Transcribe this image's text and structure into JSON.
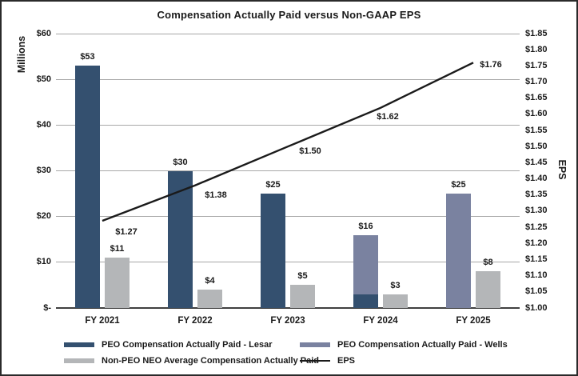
{
  "chart_data": {
    "type": "bar+line",
    "title": "Compensation Actually Paid versus Non-GAAP EPS",
    "categories": [
      "FY 2021",
      "FY 2022",
      "FY 2023",
      "FY 2024",
      "FY 2025"
    ],
    "left_axis": {
      "title": "Millions",
      "min": 0,
      "max": 60,
      "ticks": [
        {
          "label": "$60",
          "value": 60
        },
        {
          "label": "$50",
          "value": 50
        },
        {
          "label": "$40",
          "value": 40
        },
        {
          "label": "$30",
          "value": 30
        },
        {
          "label": "$20",
          "value": 20
        },
        {
          "label": "$10",
          "value": 10
        },
        {
          "label": "$-",
          "value": 0
        }
      ]
    },
    "right_axis": {
      "title": "EPS",
      "min": 1.0,
      "max": 1.85,
      "ticks": [
        {
          "label": "$1.85",
          "value": 1.85
        },
        {
          "label": "$1.80",
          "value": 1.8
        },
        {
          "label": "$1.75",
          "value": 1.75
        },
        {
          "label": "$1.70",
          "value": 1.7
        },
        {
          "label": "$1.65",
          "value": 1.65
        },
        {
          "label": "$1.60",
          "value": 1.6
        },
        {
          "label": "$1.55",
          "value": 1.55
        },
        {
          "label": "$1.50",
          "value": 1.5
        },
        {
          "label": "$1.45",
          "value": 1.45
        },
        {
          "label": "$1.40",
          "value": 1.4
        },
        {
          "label": "$1.35",
          "value": 1.35
        },
        {
          "label": "$1.30",
          "value": 1.3
        },
        {
          "label": "$1.25",
          "value": 1.25
        },
        {
          "label": "$1.20",
          "value": 1.2
        },
        {
          "label": "$1.15",
          "value": 1.15
        },
        {
          "label": "$1.10",
          "value": 1.1
        },
        {
          "label": "$1.05",
          "value": 1.05
        },
        {
          "label": "$1.00",
          "value": 1.0
        }
      ]
    },
    "stacks": [
      "peo",
      "neo"
    ],
    "series": [
      {
        "key": "lesar",
        "name": "PEO Compensation Actually Paid - Lesar",
        "type": "bar",
        "stack": "peo",
        "color": "#34506f",
        "values": [
          53,
          30,
          25,
          3,
          0
        ]
      },
      {
        "key": "wells",
        "name": "PEO Compensation Actually Paid - Wells",
        "type": "bar",
        "stack": "peo",
        "color": "#7a82a0",
        "values": [
          0,
          0,
          0,
          13,
          25
        ]
      },
      {
        "key": "neo",
        "name": "Non-PEO NEO Average Compensation Actually Paid",
        "type": "bar",
        "stack": "neo",
        "color": "#b4b6b8",
        "values": [
          11,
          4,
          5,
          3,
          8
        ]
      },
      {
        "key": "eps",
        "name": "EPS",
        "type": "line",
        "axis": "right",
        "color": "#1a1a1a",
        "values": [
          1.27,
          1.38,
          1.5,
          1.62,
          1.76
        ]
      }
    ],
    "bar_total_labels": {
      "peo": [
        "$53",
        "$30",
        "$25",
        "$16",
        "$25"
      ],
      "neo": [
        "$11",
        "$4",
        "$5",
        "$3",
        "$8"
      ]
    },
    "line_point_labels": [
      "$1.27",
      "$1.38",
      "$1.50",
      "$1.62",
      "$1.76"
    ],
    "gridlines": true,
    "legend_position": "bottom"
  }
}
